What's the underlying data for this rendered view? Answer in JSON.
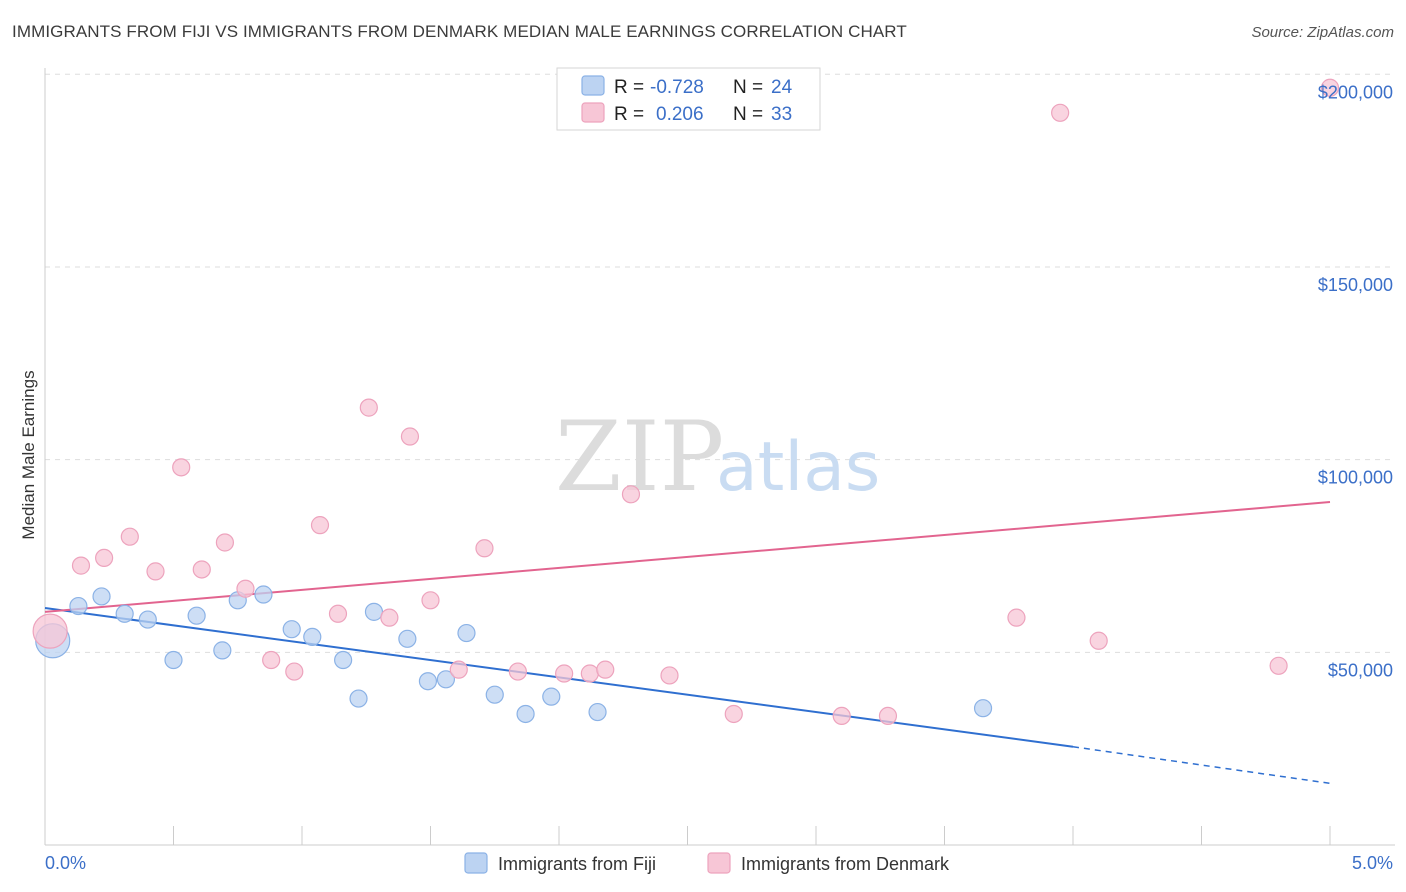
{
  "title": "IMMIGRANTS FROM FIJI VS IMMIGRANTS FROM DENMARK MEDIAN MALE EARNINGS CORRELATION CHART",
  "source": "Source: ZipAtlas.com",
  "watermark": {
    "zip": "ZIP",
    "atlas": "atlas"
  },
  "colors": {
    "fiji_fill": "#bcd3f2",
    "fiji_stroke": "#8bb2e6",
    "fiji_line": "#2f6fd0",
    "denmark_fill": "#f7c6d6",
    "denmark_stroke": "#eda3bd",
    "denmark_line": "#e2648f",
    "tick_text": "#3b6fc8",
    "grid": "#dddddd"
  },
  "legend": {
    "rows": [
      {
        "r_label": "R =",
        "r_value": "-0.728",
        "n_label": "N =",
        "n_value": "24"
      },
      {
        "r_label": "R =",
        "r_value": "0.206",
        "n_label": "N =",
        "n_value": "33"
      }
    ]
  },
  "chart_data": {
    "type": "scatter",
    "title": "IMMIGRANTS FROM FIJI VS IMMIGRANTS FROM DENMARK MEDIAN MALE EARNINGS CORRELATION CHART",
    "xlabel": "",
    "ylabel": "Median Male Earnings",
    "xlim": [
      0,
      5
    ],
    "ylim": [
      0,
      205000
    ],
    "x_tick_labels": [
      "0.0%",
      "5.0%"
    ],
    "y_ticks": [
      50000,
      100000,
      150000,
      200000
    ],
    "y_tick_labels": [
      "$50,000",
      "$100,000",
      "$150,000",
      "$200,000"
    ],
    "grid": true,
    "legend_position": "top-center",
    "series": [
      {
        "name": "Immigrants from Fiji",
        "r": -0.728,
        "n": 24,
        "trend": {
          "x0": 0,
          "y0": 61500,
          "x1": 4.0,
          "y1": 25500,
          "dash_to_x": 5.0,
          "dash_to_y": 16000
        },
        "points": [
          {
            "x": 0.03,
            "y": 53000,
            "big": true
          },
          {
            "x": 0.13,
            "y": 62000
          },
          {
            "x": 0.22,
            "y": 64500
          },
          {
            "x": 0.31,
            "y": 60000
          },
          {
            "x": 0.4,
            "y": 58500
          },
          {
            "x": 0.5,
            "y": 48000
          },
          {
            "x": 0.59,
            "y": 59500
          },
          {
            "x": 0.69,
            "y": 50500
          },
          {
            "x": 0.75,
            "y": 63500
          },
          {
            "x": 0.85,
            "y": 65000
          },
          {
            "x": 0.96,
            "y": 56000
          },
          {
            "x": 1.04,
            "y": 54000
          },
          {
            "x": 1.16,
            "y": 48000
          },
          {
            "x": 1.22,
            "y": 38000
          },
          {
            "x": 1.28,
            "y": 60500
          },
          {
            "x": 1.41,
            "y": 53500
          },
          {
            "x": 1.49,
            "y": 42500
          },
          {
            "x": 1.56,
            "y": 43000
          },
          {
            "x": 1.64,
            "y": 55000
          },
          {
            "x": 1.75,
            "y": 39000
          },
          {
            "x": 1.87,
            "y": 34000
          },
          {
            "x": 1.97,
            "y": 38500
          },
          {
            "x": 2.15,
            "y": 34500
          },
          {
            "x": 3.65,
            "y": 35500
          }
        ]
      },
      {
        "name": "Immigrants from Denmark",
        "r": 0.206,
        "n": 33,
        "trend": {
          "x0": 0,
          "y0": 60500,
          "x1": 5.0,
          "y1": 89000
        },
        "points": [
          {
            "x": 0.02,
            "y": 55500,
            "big": true
          },
          {
            "x": 0.14,
            "y": 72500
          },
          {
            "x": 0.23,
            "y": 74500
          },
          {
            "x": 0.33,
            "y": 80000
          },
          {
            "x": 0.43,
            "y": 71000
          },
          {
            "x": 0.53,
            "y": 98000
          },
          {
            "x": 0.61,
            "y": 71500
          },
          {
            "x": 0.7,
            "y": 78500
          },
          {
            "x": 0.78,
            "y": 66500
          },
          {
            "x": 0.88,
            "y": 48000
          },
          {
            "x": 0.97,
            "y": 45000
          },
          {
            "x": 1.07,
            "y": 83000
          },
          {
            "x": 1.14,
            "y": 60000
          },
          {
            "x": 1.26,
            "y": 113500
          },
          {
            "x": 1.34,
            "y": 59000
          },
          {
            "x": 1.42,
            "y": 106000
          },
          {
            "x": 1.5,
            "y": 63500
          },
          {
            "x": 1.61,
            "y": 45500
          },
          {
            "x": 1.71,
            "y": 77000
          },
          {
            "x": 1.84,
            "y": 45000
          },
          {
            "x": 2.02,
            "y": 44500
          },
          {
            "x": 2.12,
            "y": 44500
          },
          {
            "x": 2.18,
            "y": 45500
          },
          {
            "x": 2.28,
            "y": 91000
          },
          {
            "x": 2.43,
            "y": 44000
          },
          {
            "x": 2.68,
            "y": 34000
          },
          {
            "x": 3.1,
            "y": 33500
          },
          {
            "x": 3.28,
            "y": 33500
          },
          {
            "x": 3.78,
            "y": 59000
          },
          {
            "x": 3.95,
            "y": 190000
          },
          {
            "x": 4.1,
            "y": 53000
          },
          {
            "x": 4.8,
            "y": 46500
          },
          {
            "x": 5.0,
            "y": 196500
          }
        ]
      }
    ]
  }
}
